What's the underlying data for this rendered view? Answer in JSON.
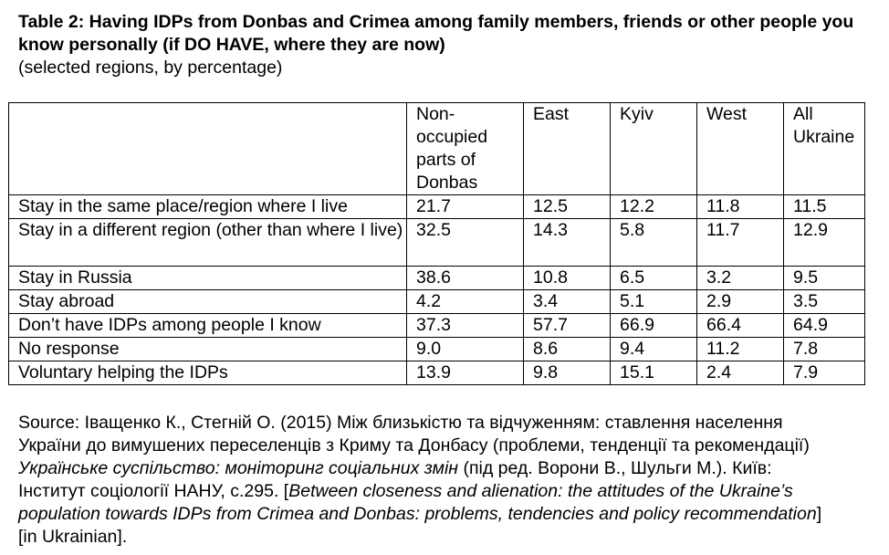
{
  "title": "Table 2: Having IDPs from Donbas and Crimea among family members, friends or other people you know personally  (if DO HAVE, where they are now)",
  "subtitle": "(selected regions, by percentage)",
  "table": {
    "columns": [
      "",
      "Non-occupied parts of Donbas",
      "East",
      "Kyiv",
      "West",
      "All Ukraine"
    ],
    "rows": [
      {
        "label": "Stay in the same place/region where I live",
        "values": [
          "21.7",
          "12.5",
          "12.2",
          "11.8",
          "11.5"
        ]
      },
      {
        "label": "Stay in a different region (other than where I live)",
        "values": [
          "32.5",
          "14.3",
          "5.8",
          "11.7",
          "12.9"
        ]
      },
      {
        "label": "Stay in Russia",
        "values": [
          "38.6",
          "10.8",
          "6.5",
          "3.2",
          "9.5"
        ]
      },
      {
        "label": "Stay abroad",
        "values": [
          "4.2",
          "3.4",
          "5.1",
          "2.9",
          "3.5"
        ]
      },
      {
        "label": "Don’t have IDPs among people I know",
        "values": [
          "37.3",
          "57.7",
          "66.9",
          "66.4",
          "64.9"
        ]
      },
      {
        "label": "No response",
        "values": [
          "9.0",
          "8.6",
          "9.4",
          "11.2",
          "7.8"
        ]
      },
      {
        "label": "Voluntary helping the IDPs",
        "values": [
          "13.9",
          "9.8",
          "15.1",
          "2.4",
          "7.9"
        ]
      }
    ]
  },
  "source": {
    "prefix": "Source: Іващенко К., Стегній О. (2015) Між близькістю та відчуженням: ставлення населення України до вимушених переселенців з Криму та Донбасу (проблеми, тенденції та рекомендації) ",
    "journal": "Українське суспільство: моніторинг соціальних змін",
    "middle": " (під ред. Ворони В., Шульги М.). Київ: Інститут соціології НАНУ, с.295. [",
    "translation": "Between closeness and alienation: the attitudes of the Ukraine’s population towards IDPs from Crimea and Donbas: problems, tendencies and policy recommendation",
    "suffix": "]  [in Ukrainian]."
  }
}
